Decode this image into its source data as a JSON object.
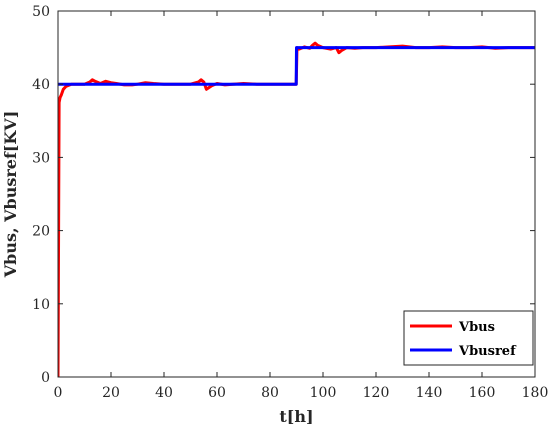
{
  "chart_data": {
    "type": "line",
    "title": "",
    "xlabel": "t[h]",
    "ylabel": "Vbus, Vbusref[KV]",
    "xlim": [
      0,
      180
    ],
    "ylim": [
      0,
      50
    ],
    "xticks": [
      0,
      20,
      40,
      60,
      80,
      100,
      120,
      140,
      160,
      180
    ],
    "yticks": [
      0,
      10,
      20,
      30,
      40,
      50
    ],
    "grid": false,
    "legend_position": "bottom-right",
    "series": [
      {
        "name": "Vbus",
        "color": "#ff0000",
        "x": [
          0,
          0.4,
          0.8,
          1.2,
          2,
          3,
          5,
          8,
          10,
          12,
          13,
          14,
          16,
          18,
          20,
          22,
          25,
          28,
          30,
          33,
          36,
          40,
          45,
          50,
          53,
          54,
          55,
          56,
          58,
          60,
          63,
          66,
          70,
          75,
          80,
          85,
          89.9,
          90.2,
          91,
          93,
          95,
          96,
          97,
          98,
          100,
          103,
          105,
          106,
          107,
          109,
          112,
          115,
          120,
          125,
          130,
          135,
          140,
          145,
          150,
          155,
          160,
          165,
          170,
          175,
          180
        ],
        "y": [
          0,
          37.5,
          38.2,
          38.5,
          39.3,
          39.7,
          40,
          40,
          40,
          40.3,
          40.6,
          40.4,
          40.1,
          40.4,
          40.2,
          40.1,
          39.9,
          39.9,
          40,
          40.2,
          40.1,
          40,
          40,
          40,
          40.3,
          40.6,
          40.3,
          39.3,
          39.8,
          40.1,
          39.9,
          40,
          40.1,
          40,
          40,
          40,
          40,
          45,
          44.8,
          45.1,
          44.9,
          45.3,
          45.6,
          45.3,
          45,
          44.8,
          45,
          44.3,
          44.6,
          45,
          44.9,
          45,
          45,
          45.1,
          45.2,
          45,
          45,
          45.1,
          45,
          45,
          45.1,
          44.9,
          45,
          45,
          45
        ]
      },
      {
        "name": "Vbusref",
        "color": "#0000ff",
        "x": [
          0,
          89.9,
          90,
          180
        ],
        "y": [
          40,
          40,
          45,
          45
        ]
      }
    ]
  }
}
